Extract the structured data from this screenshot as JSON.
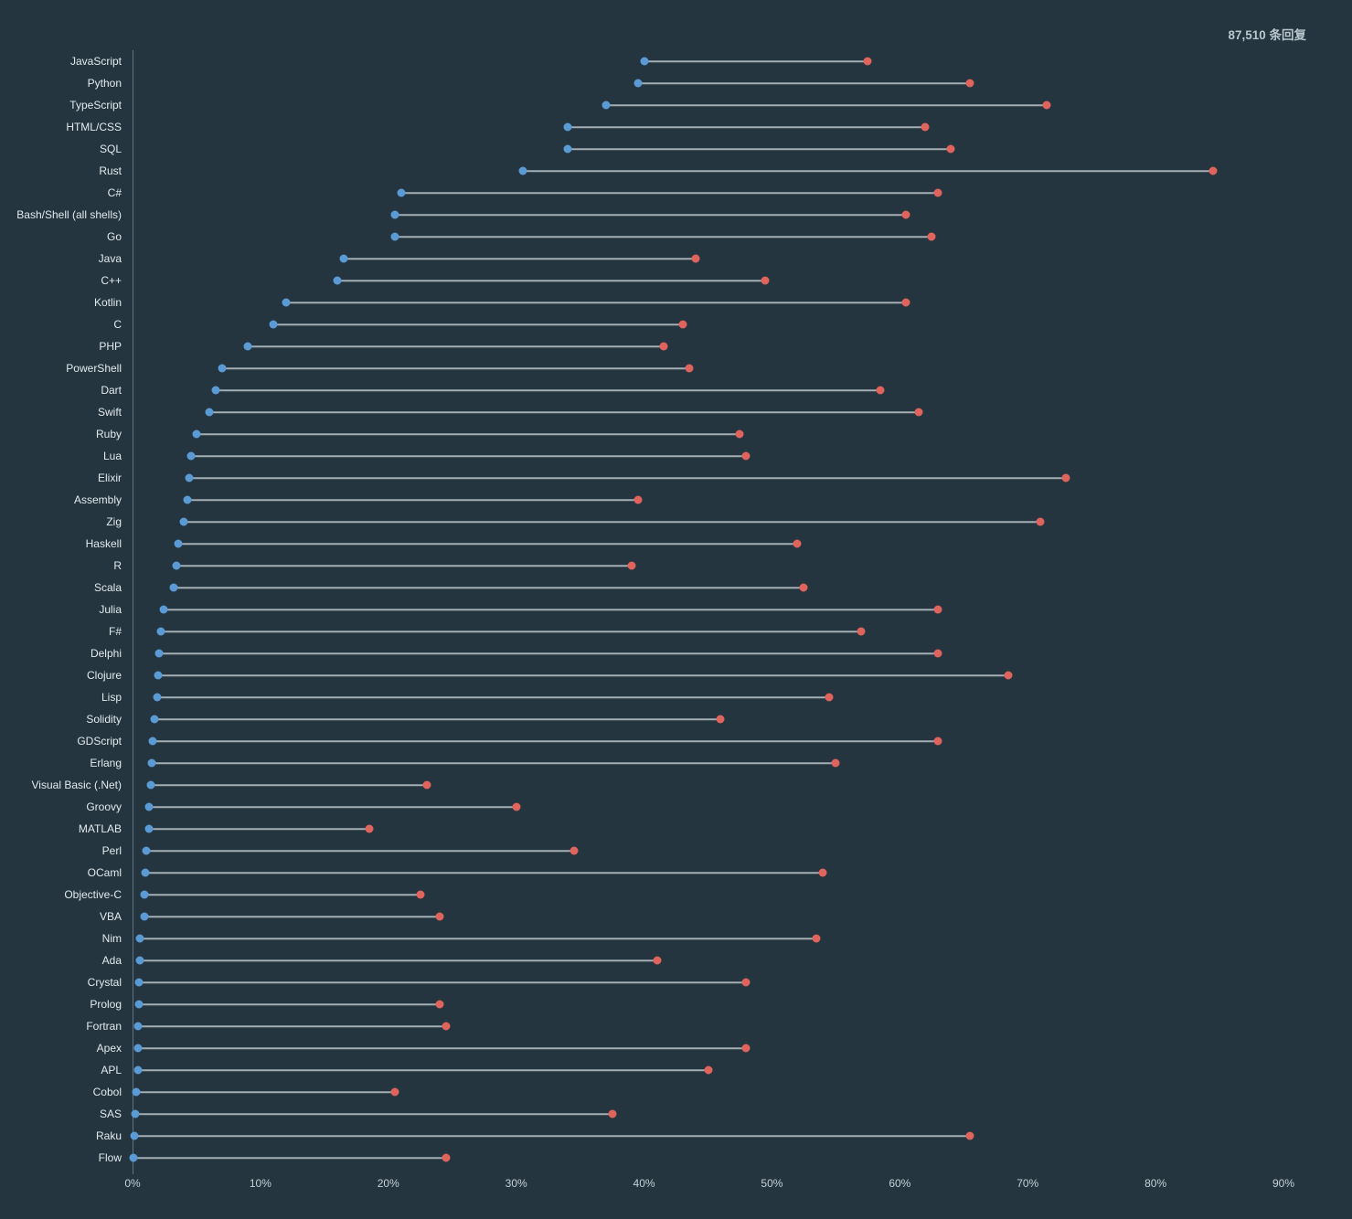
{
  "header": {
    "response_count": "87,510 条回复"
  },
  "chart_data": {
    "type": "dumbbell",
    "title": "",
    "xlabel": "",
    "ylabel": "",
    "x_min": 0,
    "x_max": 90,
    "grid": false,
    "legend": "none",
    "x_ticks": [
      "0%",
      "10%",
      "20%",
      "30%",
      "40%",
      "50%",
      "60%",
      "70%",
      "80%",
      "90%"
    ],
    "x_tick_values": [
      0,
      10,
      20,
      30,
      40,
      50,
      60,
      70,
      80,
      90
    ],
    "colors": {
      "background": "#24353f",
      "header_text": "#b9c6cd",
      "label": "#e3eaee",
      "tick_text": "#c6d0d6",
      "axis": "#5f7380",
      "line": "#cdd7dc",
      "blue_dot": "#5b9bd5",
      "red_dot": "#e0635c"
    },
    "rows": [
      {
        "label": "JavaScript",
        "blue": 40,
        "red": 57.5
      },
      {
        "label": "Python",
        "blue": 39.5,
        "red": 65.5
      },
      {
        "label": "TypeScript",
        "blue": 37,
        "red": 71.5
      },
      {
        "label": "HTML/CSS",
        "blue": 34,
        "red": 62
      },
      {
        "label": "SQL",
        "blue": 34,
        "red": 64
      },
      {
        "label": "Rust",
        "blue": 30.5,
        "red": 84.5
      },
      {
        "label": "C#",
        "blue": 21,
        "red": 63
      },
      {
        "label": "Bash/Shell (all shells)",
        "blue": 20.5,
        "red": 60.5
      },
      {
        "label": "Go",
        "blue": 20.5,
        "red": 62.5
      },
      {
        "label": "Java",
        "blue": 16.5,
        "red": 44
      },
      {
        "label": "C++",
        "blue": 16,
        "red": 49.5
      },
      {
        "label": "Kotlin",
        "blue": 12,
        "red": 60.5
      },
      {
        "label": "C",
        "blue": 11,
        "red": 43
      },
      {
        "label": "PHP",
        "blue": 9,
        "red": 41.5
      },
      {
        "label": "PowerShell",
        "blue": 7,
        "red": 43.5
      },
      {
        "label": "Dart",
        "blue": 6.5,
        "red": 58.5
      },
      {
        "label": "Swift",
        "blue": 6,
        "red": 61.5
      },
      {
        "label": "Ruby",
        "blue": 5,
        "red": 47.5
      },
      {
        "label": "Lua",
        "blue": 4.6,
        "red": 48
      },
      {
        "label": "Elixir",
        "blue": 4.4,
        "red": 73
      },
      {
        "label": "Assembly",
        "blue": 4.3,
        "red": 39.5
      },
      {
        "label": "Zig",
        "blue": 4,
        "red": 71
      },
      {
        "label": "Haskell",
        "blue": 3.6,
        "red": 52
      },
      {
        "label": "R",
        "blue": 3.4,
        "red": 39
      },
      {
        "label": "Scala",
        "blue": 3.2,
        "red": 52.5
      },
      {
        "label": "Julia",
        "blue": 2.4,
        "red": 63
      },
      {
        "label": "F#",
        "blue": 2.2,
        "red": 57
      },
      {
        "label": "Delphi",
        "blue": 2.1,
        "red": 63
      },
      {
        "label": "Clojure",
        "blue": 2,
        "red": 68.5
      },
      {
        "label": "Lisp",
        "blue": 1.9,
        "red": 54.5
      },
      {
        "label": "Solidity",
        "blue": 1.7,
        "red": 46
      },
      {
        "label": "GDScript",
        "blue": 1.6,
        "red": 63
      },
      {
        "label": "Erlang",
        "blue": 1.5,
        "red": 55
      },
      {
        "label": "Visual Basic (.Net)",
        "blue": 1.4,
        "red": 23
      },
      {
        "label": "Groovy",
        "blue": 1.3,
        "red": 30
      },
      {
        "label": "MATLAB",
        "blue": 1.3,
        "red": 18.5
      },
      {
        "label": "Perl",
        "blue": 1.1,
        "red": 34.5
      },
      {
        "label": "OCaml",
        "blue": 1,
        "red": 54
      },
      {
        "label": "Objective-C",
        "blue": 0.9,
        "red": 22.5
      },
      {
        "label": "VBA",
        "blue": 0.9,
        "red": 24
      },
      {
        "label": "Nim",
        "blue": 0.6,
        "red": 53.5
      },
      {
        "label": "Ada",
        "blue": 0.6,
        "red": 41
      },
      {
        "label": "Crystal",
        "blue": 0.5,
        "red": 48
      },
      {
        "label": "Prolog",
        "blue": 0.5,
        "red": 24
      },
      {
        "label": "Fortran",
        "blue": 0.4,
        "red": 24.5
      },
      {
        "label": "Apex",
        "blue": 0.4,
        "red": 48
      },
      {
        "label": "APL",
        "blue": 0.4,
        "red": 45
      },
      {
        "label": "Cobol",
        "blue": 0.3,
        "red": 20.5
      },
      {
        "label": "SAS",
        "blue": 0.2,
        "red": 37.5
      },
      {
        "label": "Raku",
        "blue": 0.15,
        "red": 65.5
      },
      {
        "label": "Flow",
        "blue": 0.1,
        "red": 24.5
      }
    ]
  }
}
